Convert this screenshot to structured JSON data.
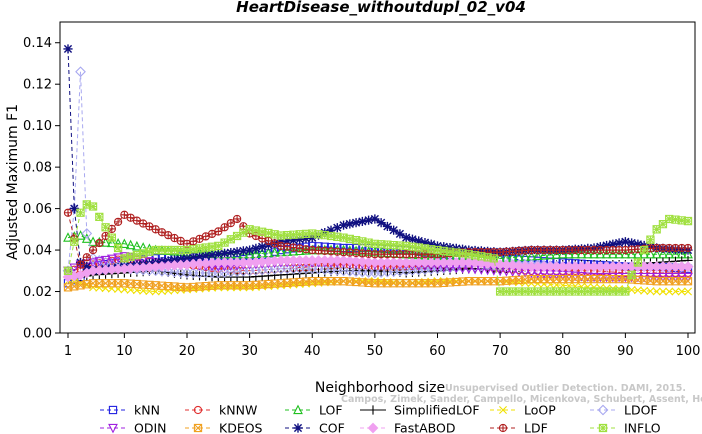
{
  "chart_data": {
    "type": "line",
    "title": "HeartDisease_withoutdupl_02_v04",
    "xlabel": "Neighborhood size",
    "ylabel": "Adjusted Maximum F1",
    "xlim": [
      1,
      100
    ],
    "ylim": [
      0,
      0.15
    ],
    "x_ticks": [
      "1",
      "10",
      "20",
      "30",
      "40",
      "50",
      "60",
      "70",
      "80",
      "90",
      "100"
    ],
    "y_ticks": [
      "0.00",
      "0.02",
      "0.04",
      "0.06",
      "0.08",
      "0.10",
      "0.12",
      "0.14"
    ],
    "grid": false,
    "legend_position": "bottom",
    "watermark": [
      "Campos, Zimek, Sander, Campello, Micenkova, Schubert, Assent, Houle",
      "Unsupervised Outlier Detection. DAMI, 2015."
    ],
    "series": [
      {
        "name": "kNN",
        "color": "#2020e0",
        "marker": "square",
        "dash": "4,3",
        "anchors": [
          [
            1,
            0.024
          ],
          [
            3,
            0.027
          ],
          [
            5,
            0.032
          ],
          [
            10,
            0.035
          ],
          [
            15,
            0.036
          ],
          [
            20,
            0.037
          ],
          [
            25,
            0.034
          ],
          [
            30,
            0.036
          ],
          [
            35,
            0.04
          ],
          [
            40,
            0.042
          ],
          [
            45,
            0.041
          ],
          [
            50,
            0.041
          ],
          [
            55,
            0.04
          ],
          [
            60,
            0.038
          ],
          [
            65,
            0.037
          ],
          [
            70,
            0.036
          ],
          [
            75,
            0.035
          ],
          [
            80,
            0.034
          ],
          [
            85,
            0.033
          ],
          [
            90,
            0.032
          ],
          [
            95,
            0.032
          ],
          [
            100,
            0.031
          ]
        ]
      },
      {
        "name": "kNNW",
        "color": "#e03030",
        "marker": "circle",
        "dash": "4,3",
        "anchors": [
          [
            1,
            0.03
          ],
          [
            3,
            0.031
          ],
          [
            5,
            0.033
          ],
          [
            10,
            0.036
          ],
          [
            15,
            0.034
          ],
          [
            20,
            0.033
          ],
          [
            25,
            0.031
          ],
          [
            30,
            0.03
          ],
          [
            35,
            0.031
          ],
          [
            40,
            0.032
          ],
          [
            45,
            0.033
          ],
          [
            50,
            0.032
          ],
          [
            55,
            0.032
          ],
          [
            60,
            0.033
          ],
          [
            65,
            0.033
          ],
          [
            70,
            0.031
          ],
          [
            75,
            0.03
          ],
          [
            80,
            0.03
          ],
          [
            85,
            0.03
          ],
          [
            90,
            0.029
          ],
          [
            95,
            0.029
          ],
          [
            100,
            0.029
          ]
        ]
      },
      {
        "name": "LOF",
        "color": "#20c020",
        "marker": "triangle",
        "dash": "4,3",
        "anchors": [
          [
            1,
            0.046
          ],
          [
            3,
            0.047
          ],
          [
            5,
            0.044
          ],
          [
            10,
            0.043
          ],
          [
            15,
            0.04
          ],
          [
            20,
            0.039
          ],
          [
            25,
            0.038
          ],
          [
            30,
            0.038
          ],
          [
            35,
            0.039
          ],
          [
            40,
            0.04
          ],
          [
            45,
            0.04
          ],
          [
            50,
            0.039
          ],
          [
            55,
            0.038
          ],
          [
            60,
            0.037
          ],
          [
            65,
            0.037
          ],
          [
            70,
            0.036
          ],
          [
            75,
            0.037
          ],
          [
            80,
            0.038
          ],
          [
            85,
            0.038
          ],
          [
            90,
            0.038
          ],
          [
            95,
            0.038
          ],
          [
            100,
            0.038
          ]
        ]
      },
      {
        "name": "SimplifiedLOF",
        "color": "#000000",
        "marker": "plus",
        "dash": "",
        "anchors": [
          [
            1,
            0.03
          ],
          [
            3,
            0.027
          ],
          [
            5,
            0.028
          ],
          [
            10,
            0.029
          ],
          [
            15,
            0.03
          ],
          [
            20,
            0.028
          ],
          [
            25,
            0.027
          ],
          [
            30,
            0.027
          ],
          [
            35,
            0.028
          ],
          [
            40,
            0.029
          ],
          [
            45,
            0.03
          ],
          [
            50,
            0.03
          ],
          [
            55,
            0.029
          ],
          [
            60,
            0.03
          ],
          [
            65,
            0.031
          ],
          [
            70,
            0.031
          ],
          [
            75,
            0.032
          ],
          [
            80,
            0.033
          ],
          [
            85,
            0.033
          ],
          [
            90,
            0.033
          ],
          [
            95,
            0.034
          ],
          [
            100,
            0.035
          ]
        ]
      },
      {
        "name": "LoOP",
        "color": "#f0e000",
        "marker": "cross",
        "dash": "4,3",
        "anchors": [
          [
            1,
            0.025
          ],
          [
            3,
            0.024
          ],
          [
            5,
            0.022
          ],
          [
            10,
            0.021
          ],
          [
            15,
            0.02
          ],
          [
            20,
            0.021
          ],
          [
            25,
            0.022
          ],
          [
            30,
            0.022
          ],
          [
            35,
            0.023
          ],
          [
            40,
            0.024
          ],
          [
            45,
            0.025
          ],
          [
            50,
            0.025
          ],
          [
            55,
            0.024
          ],
          [
            60,
            0.025
          ],
          [
            65,
            0.025
          ],
          [
            70,
            0.025
          ],
          [
            75,
            0.024
          ],
          [
            80,
            0.023
          ],
          [
            85,
            0.022
          ],
          [
            90,
            0.021
          ],
          [
            95,
            0.02
          ],
          [
            100,
            0.02
          ]
        ]
      },
      {
        "name": "LDOF",
        "color": "#a8a8f0",
        "marker": "diamond",
        "dash": "4,3",
        "anchors": [
          [
            1,
            0.03
          ],
          [
            2,
            0.06
          ],
          [
            3,
            0.126
          ],
          [
            4,
            0.048
          ],
          [
            5,
            0.036
          ],
          [
            10,
            0.031
          ],
          [
            15,
            0.03
          ],
          [
            20,
            0.029
          ],
          [
            25,
            0.029
          ],
          [
            30,
            0.03
          ],
          [
            35,
            0.031
          ],
          [
            40,
            0.031
          ],
          [
            45,
            0.03
          ],
          [
            50,
            0.029
          ],
          [
            55,
            0.03
          ],
          [
            60,
            0.031
          ],
          [
            65,
            0.032
          ],
          [
            70,
            0.033
          ],
          [
            75,
            0.033
          ],
          [
            80,
            0.032
          ],
          [
            85,
            0.032
          ],
          [
            90,
            0.032
          ],
          [
            95,
            0.032
          ],
          [
            100,
            0.032
          ]
        ]
      },
      {
        "name": "ODIN",
        "color": "#a020e0",
        "marker": "triangle-down",
        "dash": "4,3",
        "anchors": [
          [
            1,
            0.03
          ],
          [
            3,
            0.033
          ],
          [
            5,
            0.034
          ],
          [
            10,
            0.037
          ],
          [
            15,
            0.034
          ],
          [
            20,
            0.033
          ],
          [
            25,
            0.032
          ],
          [
            30,
            0.033
          ],
          [
            35,
            0.034
          ],
          [
            40,
            0.034
          ],
          [
            45,
            0.034
          ],
          [
            50,
            0.033
          ],
          [
            55,
            0.033
          ],
          [
            60,
            0.032
          ],
          [
            65,
            0.031
          ],
          [
            70,
            0.03
          ],
          [
            75,
            0.029
          ],
          [
            80,
            0.028
          ],
          [
            85,
            0.027
          ],
          [
            90,
            0.027
          ],
          [
            95,
            0.027
          ],
          [
            100,
            0.027
          ]
        ]
      },
      {
        "name": "KDEOS",
        "color": "#f0a020",
        "marker": "square-x",
        "dash": "4,3",
        "anchors": [
          [
            1,
            0.022
          ],
          [
            3,
            0.023
          ],
          [
            5,
            0.024
          ],
          [
            10,
            0.024
          ],
          [
            15,
            0.023
          ],
          [
            20,
            0.022
          ],
          [
            25,
            0.023
          ],
          [
            30,
            0.023
          ],
          [
            35,
            0.024
          ],
          [
            40,
            0.025
          ],
          [
            45,
            0.025
          ],
          [
            50,
            0.024
          ],
          [
            55,
            0.024
          ],
          [
            60,
            0.024
          ],
          [
            65,
            0.025
          ],
          [
            70,
            0.025
          ],
          [
            75,
            0.026
          ],
          [
            80,
            0.026
          ],
          [
            85,
            0.026
          ],
          [
            90,
            0.026
          ],
          [
            95,
            0.025
          ],
          [
            100,
            0.025
          ]
        ]
      },
      {
        "name": "COF",
        "color": "#101080",
        "marker": "asterisk",
        "dash": "4,3",
        "anchors": [
          [
            1,
            0.137
          ],
          [
            2,
            0.06
          ],
          [
            3,
            0.034
          ],
          [
            5,
            0.03
          ],
          [
            10,
            0.032
          ],
          [
            15,
            0.034
          ],
          [
            20,
            0.036
          ],
          [
            25,
            0.038
          ],
          [
            30,
            0.04
          ],
          [
            35,
            0.044
          ],
          [
            40,
            0.046
          ],
          [
            45,
            0.052
          ],
          [
            50,
            0.055
          ],
          [
            55,
            0.046
          ],
          [
            60,
            0.042
          ],
          [
            65,
            0.04
          ],
          [
            70,
            0.039
          ],
          [
            75,
            0.04
          ],
          [
            80,
            0.04
          ],
          [
            85,
            0.041
          ],
          [
            90,
            0.044
          ],
          [
            95,
            0.041
          ],
          [
            100,
            0.04
          ]
        ]
      },
      {
        "name": "FastABOD",
        "color": "#f0a0f0",
        "marker": "diamond-filled",
        "dash": "4,3",
        "anchors": [
          [
            1,
            0.027
          ],
          [
            3,
            0.028
          ],
          [
            5,
            0.03
          ],
          [
            10,
            0.031
          ],
          [
            15,
            0.032
          ],
          [
            20,
            0.033
          ],
          [
            25,
            0.034
          ],
          [
            30,
            0.034
          ],
          [
            35,
            0.035
          ],
          [
            40,
            0.035
          ],
          [
            45,
            0.035
          ],
          [
            50,
            0.034
          ],
          [
            55,
            0.034
          ],
          [
            60,
            0.034
          ],
          [
            65,
            0.034
          ],
          [
            70,
            0.033
          ],
          [
            75,
            0.032
          ],
          [
            80,
            0.032
          ],
          [
            85,
            0.032
          ],
          [
            90,
            0.032
          ],
          [
            95,
            0.032
          ],
          [
            100,
            0.032
          ]
        ]
      },
      {
        "name": "LDF",
        "color": "#b02020",
        "marker": "circle-plus",
        "dash": "4,3",
        "anchors": [
          [
            1,
            0.058
          ],
          [
            3,
            0.033
          ],
          [
            5,
            0.04
          ],
          [
            10,
            0.057
          ],
          [
            15,
            0.05
          ],
          [
            20,
            0.043
          ],
          [
            25,
            0.049
          ],
          [
            28,
            0.055
          ],
          [
            30,
            0.048
          ],
          [
            35,
            0.042
          ],
          [
            40,
            0.04
          ],
          [
            45,
            0.039
          ],
          [
            50,
            0.038
          ],
          [
            55,
            0.038
          ],
          [
            60,
            0.038
          ],
          [
            65,
            0.039
          ],
          [
            70,
            0.039
          ],
          [
            75,
            0.04
          ],
          [
            80,
            0.04
          ],
          [
            85,
            0.04
          ],
          [
            90,
            0.04
          ],
          [
            95,
            0.041
          ],
          [
            100,
            0.041
          ]
        ]
      },
      {
        "name": "INFLO",
        "color": "#a0e040",
        "marker": "star-box",
        "dash": "4,3",
        "anchors": [
          [
            1,
            0.03
          ],
          [
            3,
            0.058
          ],
          [
            4,
            0.062
          ],
          [
            5,
            0.061
          ],
          [
            10,
            0.036
          ],
          [
            15,
            0.04
          ],
          [
            20,
            0.04
          ],
          [
            25,
            0.042
          ],
          [
            30,
            0.05
          ],
          [
            35,
            0.047
          ],
          [
            40,
            0.048
          ],
          [
            45,
            0.046
          ],
          [
            50,
            0.043
          ],
          [
            55,
            0.042
          ],
          [
            60,
            0.04
          ],
          [
            65,
            0.038
          ],
          [
            69,
            0.036
          ],
          [
            70,
            0.02
          ],
          [
            75,
            0.02
          ],
          [
            80,
            0.02
          ],
          [
            85,
            0.02
          ],
          [
            90,
            0.02
          ],
          [
            91,
            0.028
          ],
          [
            93,
            0.04
          ],
          [
            95,
            0.05
          ],
          [
            97,
            0.055
          ],
          [
            100,
            0.054
          ]
        ]
      }
    ]
  }
}
